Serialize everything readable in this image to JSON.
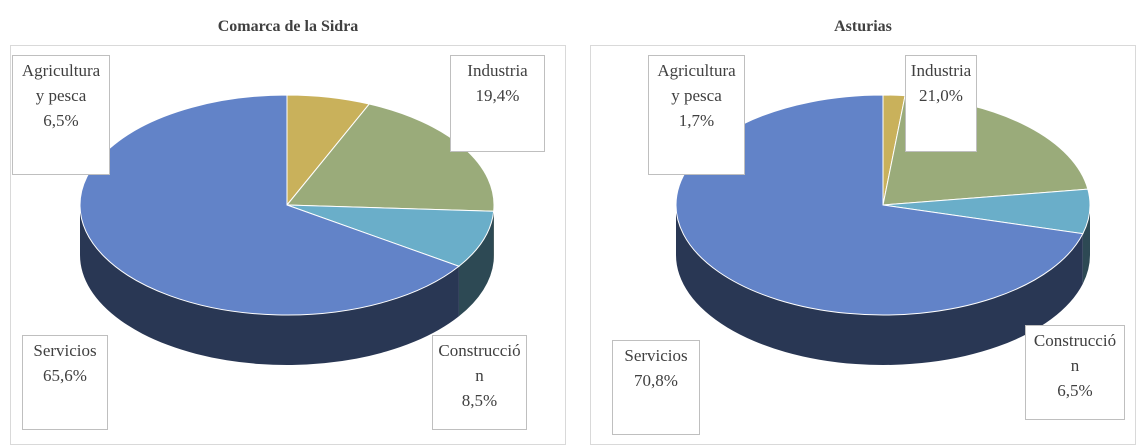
{
  "chart_data": [
    {
      "type": "pie",
      "title": "Comarca de la Sidra",
      "categories": [
        "Agricultura y pesca",
        "Industria",
        "Construcción",
        "Servicios"
      ],
      "values": [
        6.5,
        19.4,
        8.5,
        65.6
      ],
      "value_labels": [
        "6,5%",
        "19,4%",
        "8,5%",
        "65,6%"
      ],
      "colors": [
        "#c9b15b",
        "#9aab7a",
        "#6aaec9",
        "#6283c8"
      ]
    },
    {
      "type": "pie",
      "title": "Asturias",
      "categories": [
        "Agricultura y pesca",
        "Industria",
        "Construcción",
        "Servicios"
      ],
      "values": [
        1.7,
        21.0,
        6.5,
        70.8
      ],
      "value_labels": [
        "1,7%",
        "21,0%",
        "6,5%",
        "70,8%"
      ],
      "colors": [
        "#c9b15b",
        "#9aab7a",
        "#6aaec9",
        "#6283c8"
      ]
    }
  ]
}
